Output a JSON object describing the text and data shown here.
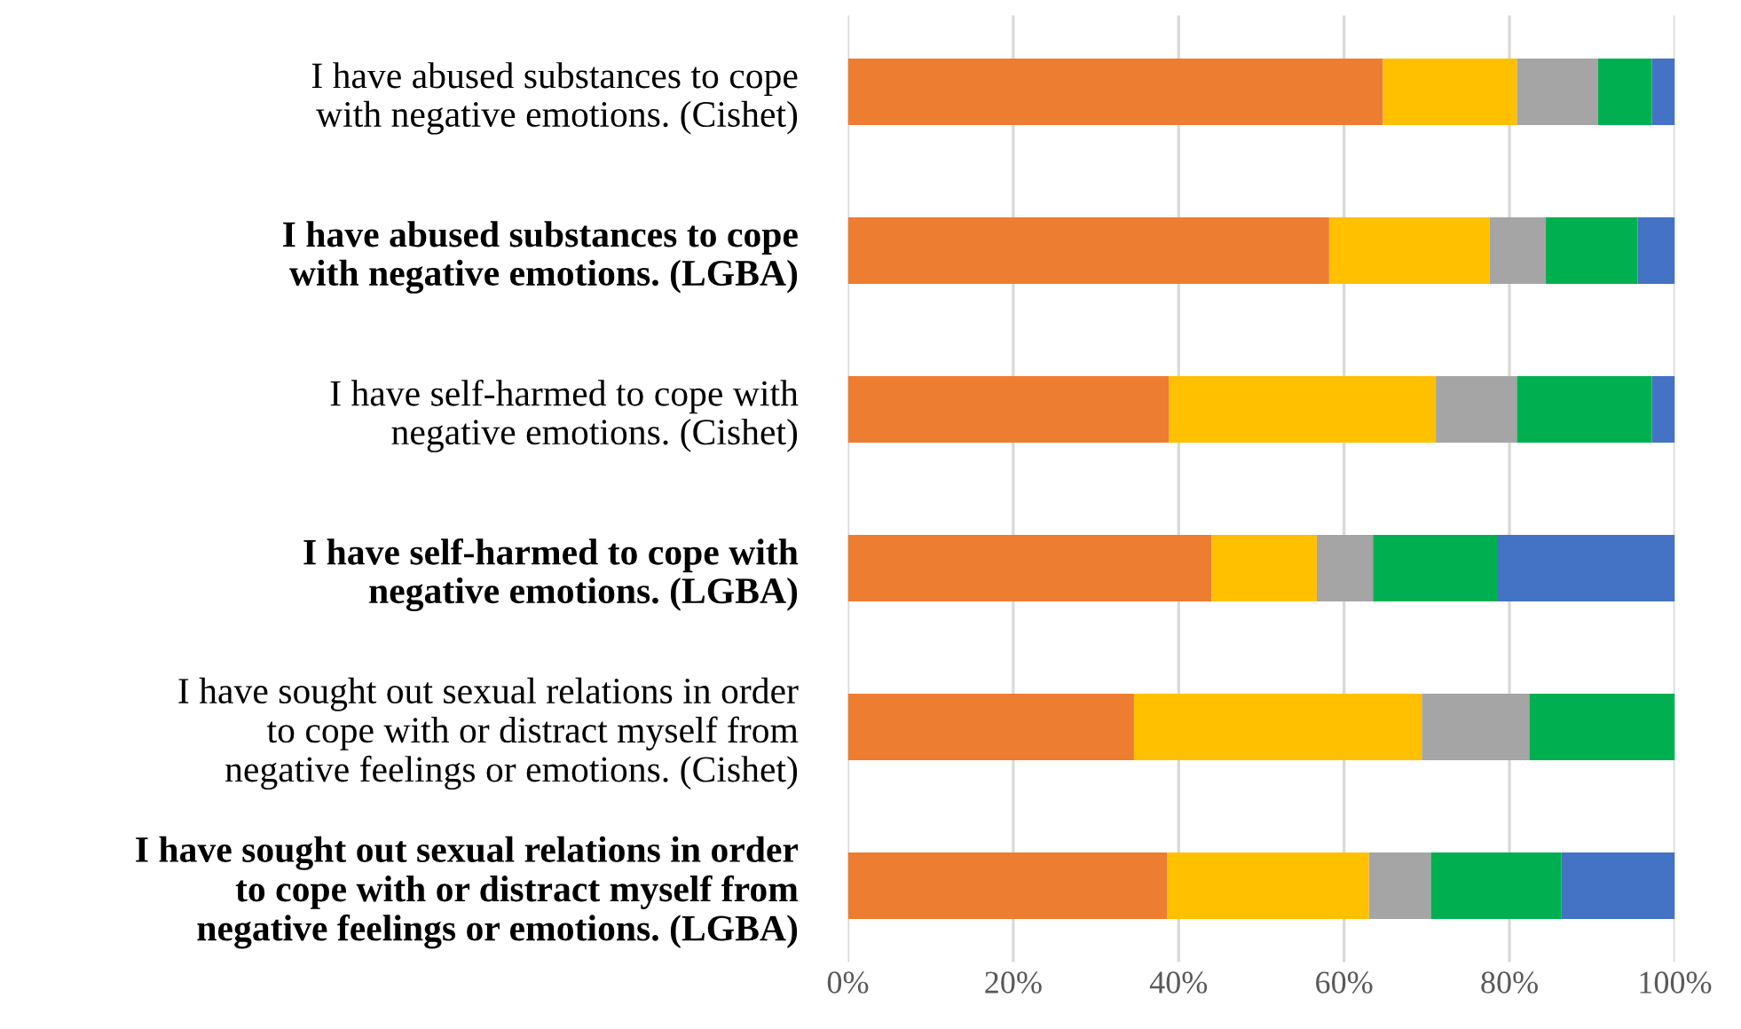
{
  "chart_data": {
    "type": "bar",
    "orientation": "horizontal",
    "stacked": true,
    "categories": [
      "I have abused substances to cope\nwith negative emotions. (Cishet)",
      "I have abused substances to cope\nwith negative emotions. (LGBA)",
      "I have self-harmed to cope with\nnegative emotions. (Cishet)",
      "I have self-harmed to cope with\nnegative emotions. (LGBA)",
      "I have sought out sexual relations in order\nto cope with or distract myself from\nnegative feelings or emotions. (Cishet)",
      "I have sought out sexual relations in order\nto cope with or distract myself from\nnegative feelings or emotions. (LGBA)"
    ],
    "series": [
      {
        "color": "#ed7d31",
        "values": [
          64.7,
          58.2,
          38.8,
          44.0,
          34.6,
          38.6
        ]
      },
      {
        "color": "#ffc000",
        "values": [
          16.2,
          19.4,
          32.3,
          12.7,
          34.8,
          24.4
        ]
      },
      {
        "color": "#a5a5a5",
        "values": [
          9.8,
          6.8,
          9.8,
          6.8,
          13.0,
          7.5
        ]
      },
      {
        "color": "#00b050",
        "values": [
          6.5,
          11.1,
          16.3,
          15.1,
          17.6,
          15.8
        ]
      },
      {
        "color": "#4472c4",
        "values": [
          2.8,
          4.5,
          2.8,
          21.4,
          0,
          13.7
        ]
      }
    ],
    "xlim": [
      0,
      100
    ],
    "xticks": [
      {
        "value": 0,
        "label": "0%"
      },
      {
        "value": 20,
        "label": "20%"
      },
      {
        "value": 40,
        "label": "40%"
      },
      {
        "value": 60,
        "label": "60%"
      },
      {
        "value": 80,
        "label": "80%"
      },
      {
        "value": 100,
        "label": "100%"
      }
    ],
    "grid": "x"
  }
}
